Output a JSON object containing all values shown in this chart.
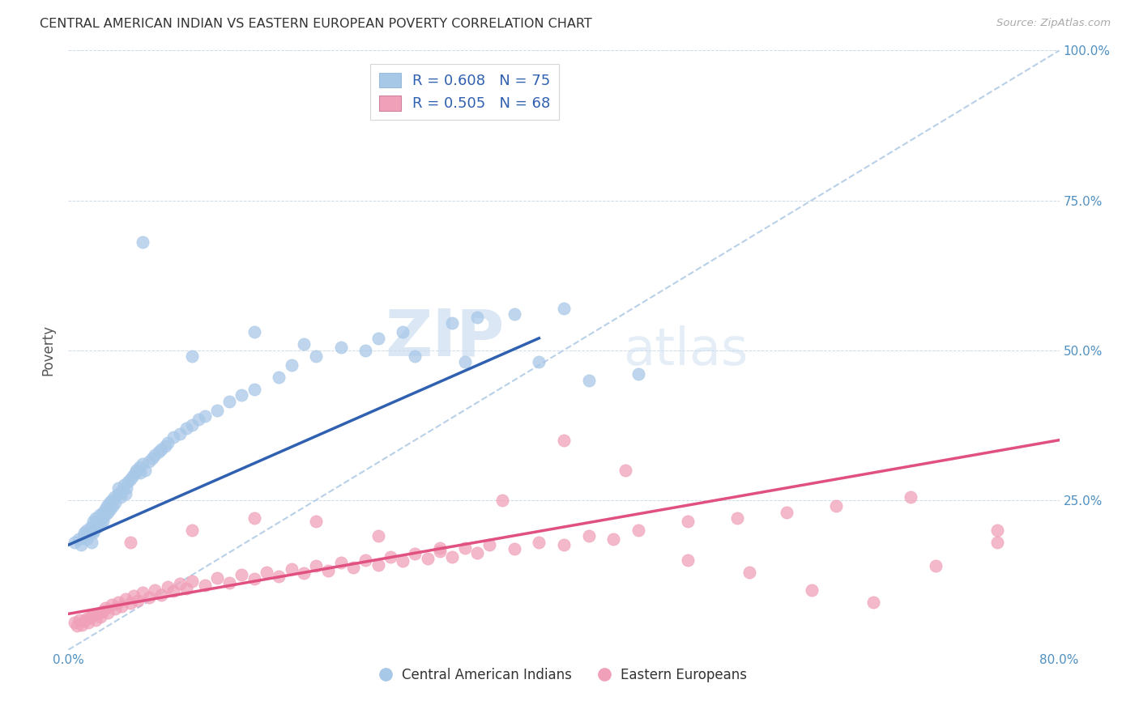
{
  "title": "CENTRAL AMERICAN INDIAN VS EASTERN EUROPEAN POVERTY CORRELATION CHART",
  "source": "Source: ZipAtlas.com",
  "ylabel": "Poverty",
  "xlim": [
    0.0,
    0.8
  ],
  "ylim": [
    0.0,
    1.0
  ],
  "watermark_zip": "ZIP",
  "watermark_atlas": "atlas",
  "legend_r1": "R = 0.608   N = 75",
  "legend_r2": "R = 0.505   N = 68",
  "legend_label1": "Central American Indians",
  "legend_label2": "Eastern Europeans",
  "color_blue": "#a8c8e8",
  "color_pink": "#f0a0b8",
  "color_blue_line": "#3060b0",
  "color_pink_line": "#e05080",
  "color_dashed": "#b8d0e8",
  "blue_scatter_x": [
    0.005,
    0.008,
    0.01,
    0.012,
    0.013,
    0.015,
    0.015,
    0.017,
    0.018,
    0.019,
    0.02,
    0.02,
    0.021,
    0.022,
    0.022,
    0.023,
    0.024,
    0.025,
    0.026,
    0.027,
    0.028,
    0.028,
    0.03,
    0.03,
    0.031,
    0.032,
    0.033,
    0.034,
    0.035,
    0.036,
    0.037,
    0.038,
    0.04,
    0.04,
    0.042,
    0.043,
    0.045,
    0.046,
    0.047,
    0.048,
    0.05,
    0.052,
    0.054,
    0.055,
    0.057,
    0.058,
    0.06,
    0.062,
    0.065,
    0.068,
    0.07,
    0.073,
    0.075,
    0.078,
    0.08,
    0.085,
    0.09,
    0.095,
    0.1,
    0.105,
    0.11,
    0.12,
    0.13,
    0.14,
    0.15,
    0.17,
    0.18,
    0.2,
    0.22,
    0.25,
    0.27,
    0.31,
    0.33,
    0.36,
    0.4
  ],
  "blue_scatter_y": [
    0.18,
    0.185,
    0.175,
    0.19,
    0.195,
    0.2,
    0.185,
    0.195,
    0.205,
    0.18,
    0.195,
    0.215,
    0.2,
    0.21,
    0.22,
    0.205,
    0.215,
    0.225,
    0.21,
    0.22,
    0.215,
    0.23,
    0.225,
    0.235,
    0.24,
    0.23,
    0.245,
    0.235,
    0.25,
    0.24,
    0.255,
    0.245,
    0.26,
    0.27,
    0.255,
    0.265,
    0.275,
    0.26,
    0.27,
    0.28,
    0.285,
    0.29,
    0.295,
    0.3,
    0.305,
    0.295,
    0.31,
    0.3,
    0.315,
    0.32,
    0.325,
    0.33,
    0.335,
    0.34,
    0.345,
    0.355,
    0.36,
    0.37,
    0.375,
    0.385,
    0.39,
    0.4,
    0.415,
    0.425,
    0.435,
    0.455,
    0.475,
    0.49,
    0.505,
    0.52,
    0.53,
    0.545,
    0.555,
    0.56,
    0.57
  ],
  "blue_outliers_x": [
    0.06,
    0.1,
    0.15,
    0.19,
    0.24,
    0.28,
    0.32,
    0.38,
    0.42,
    0.46
  ],
  "blue_outliers_y": [
    0.68,
    0.49,
    0.53,
    0.51,
    0.5,
    0.49,
    0.48,
    0.48,
    0.45,
    0.46
  ],
  "pink_scatter_x": [
    0.005,
    0.007,
    0.009,
    0.011,
    0.013,
    0.015,
    0.016,
    0.018,
    0.02,
    0.022,
    0.024,
    0.026,
    0.028,
    0.03,
    0.032,
    0.035,
    0.038,
    0.04,
    0.043,
    0.046,
    0.05,
    0.053,
    0.056,
    0.06,
    0.065,
    0.07,
    0.075,
    0.08,
    0.085,
    0.09,
    0.095,
    0.1,
    0.11,
    0.12,
    0.13,
    0.14,
    0.15,
    0.16,
    0.17,
    0.18,
    0.19,
    0.2,
    0.21,
    0.22,
    0.23,
    0.24,
    0.25,
    0.26,
    0.27,
    0.28,
    0.29,
    0.3,
    0.31,
    0.32,
    0.33,
    0.34,
    0.36,
    0.38,
    0.4,
    0.42,
    0.44,
    0.46,
    0.5,
    0.54,
    0.58,
    0.62,
    0.68,
    0.75
  ],
  "pink_scatter_y": [
    0.045,
    0.04,
    0.05,
    0.042,
    0.048,
    0.052,
    0.045,
    0.055,
    0.058,
    0.05,
    0.06,
    0.055,
    0.065,
    0.07,
    0.062,
    0.075,
    0.068,
    0.08,
    0.072,
    0.085,
    0.078,
    0.09,
    0.082,
    0.095,
    0.088,
    0.1,
    0.092,
    0.105,
    0.098,
    0.11,
    0.102,
    0.115,
    0.108,
    0.12,
    0.112,
    0.125,
    0.118,
    0.13,
    0.122,
    0.135,
    0.128,
    0.14,
    0.132,
    0.145,
    0.138,
    0.15,
    0.142,
    0.155,
    0.148,
    0.16,
    0.152,
    0.165,
    0.155,
    0.17,
    0.162,
    0.175,
    0.168,
    0.18,
    0.175,
    0.19,
    0.185,
    0.2,
    0.215,
    0.22,
    0.23,
    0.24,
    0.255,
    0.2
  ],
  "pink_outliers_x": [
    0.05,
    0.1,
    0.15,
    0.2,
    0.25,
    0.3,
    0.35,
    0.4,
    0.45,
    0.5,
    0.55,
    0.6,
    0.65,
    0.7,
    0.75
  ],
  "pink_outliers_y": [
    0.18,
    0.2,
    0.22,
    0.215,
    0.19,
    0.17,
    0.25,
    0.35,
    0.3,
    0.15,
    0.13,
    0.1,
    0.08,
    0.14,
    0.18
  ],
  "blue_line_x": [
    0.0,
    0.38
  ],
  "blue_line_y": [
    0.175,
    0.52
  ],
  "pink_line_x": [
    0.0,
    0.8
  ],
  "pink_line_y": [
    0.06,
    0.35
  ],
  "diag_line_x": [
    0.0,
    0.8
  ],
  "diag_line_y": [
    0.0,
    1.0
  ]
}
